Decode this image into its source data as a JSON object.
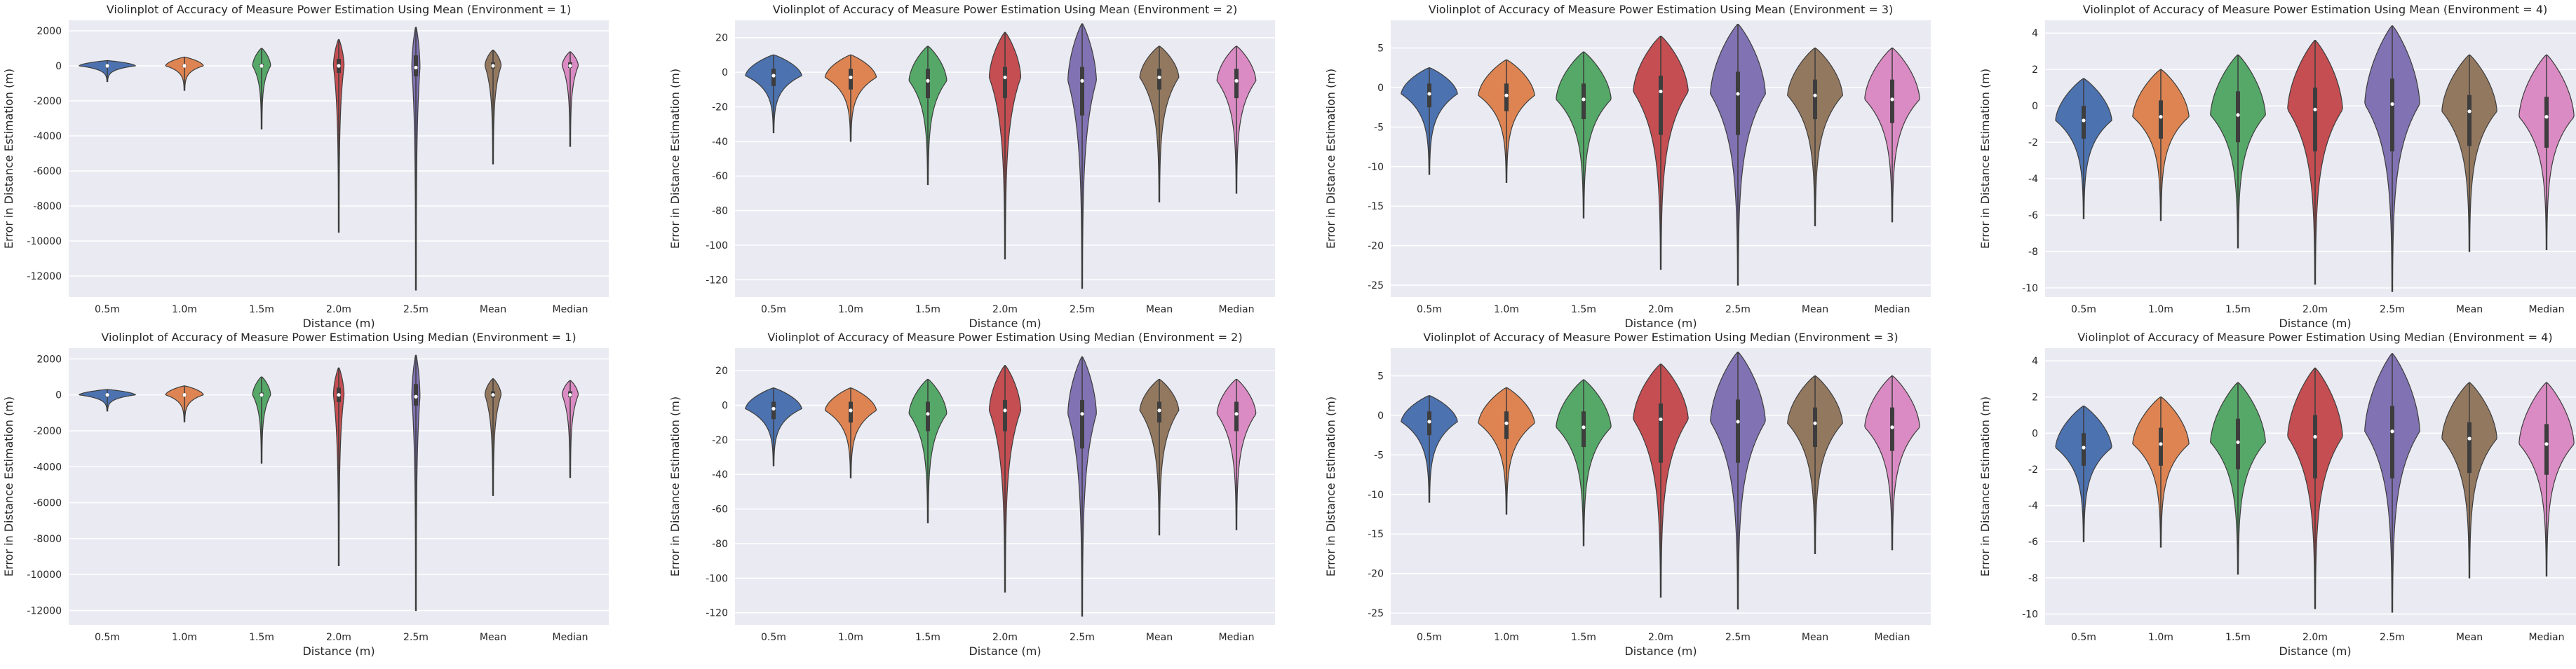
{
  "figure": {
    "palette": [
      "#4c72b0",
      "#dd8452",
      "#55a868",
      "#c44e52",
      "#8172b3",
      "#937860",
      "#da8bc3"
    ],
    "axes_background": "#eaeaf2",
    "grid_color": "#ffffff"
  },
  "chart_data": [
    {
      "type": "violin",
      "title": "Violinplot of Accuracy of Measure Power Estimation Using Mean (Environment = 1)",
      "xlabel": "Distance (m)",
      "ylabel": "Error in Distance Estimation (m)",
      "categories": [
        "0.5m",
        "1.0m",
        "1.5m",
        "2.0m",
        "2.5m",
        "Mean",
        "Median"
      ],
      "yticks": [
        2000,
        0,
        -2000,
        -4000,
        -6000,
        -8000,
        -10000,
        -12000
      ],
      "ylim": [
        -13200,
        2600
      ],
      "grid": true,
      "violins": [
        {
          "min": -900,
          "max": 300,
          "q1": -30,
          "median": 0,
          "q3": 40,
          "width": 0.9
        },
        {
          "min": -1400,
          "max": 500,
          "q1": -60,
          "median": 0,
          "q3": 60,
          "width": 0.6
        },
        {
          "min": -3600,
          "max": 1000,
          "q1": -80,
          "median": 0,
          "q3": 120,
          "width": 0.28
        },
        {
          "min": -9500,
          "max": 1500,
          "q1": -400,
          "median": 0,
          "q3": 400,
          "width": 0.16
        },
        {
          "min": -12800,
          "max": 2200,
          "q1": -600,
          "median": -100,
          "q3": 600,
          "width": 0.12
        },
        {
          "min": -5600,
          "max": 900,
          "q1": -150,
          "median": 0,
          "q3": 200,
          "width": 0.25
        },
        {
          "min": -4600,
          "max": 800,
          "q1": -120,
          "median": 0,
          "q3": 200,
          "width": 0.25
        }
      ]
    },
    {
      "type": "violin",
      "title": "Violinplot of Accuracy of Measure Power Estimation Using Mean (Environment = 2)",
      "xlabel": "Distance (m)",
      "ylabel": "Error in Distance Estimation (m)",
      "categories": [
        "0.5m",
        "1.0m",
        "1.5m",
        "2.0m",
        "2.5m",
        "Mean",
        "Median"
      ],
      "yticks": [
        20,
        0,
        -20,
        -40,
        -60,
        -80,
        -100,
        -120
      ],
      "ylim": [
        -130,
        30
      ],
      "grid": true,
      "violins": [
        {
          "min": -35,
          "max": 10,
          "q1": -8,
          "median": -2,
          "q3": 2,
          "width": 0.9
        },
        {
          "min": -40,
          "max": 10,
          "q1": -10,
          "median": -3,
          "q3": 2,
          "width": 0.82
        },
        {
          "min": -65,
          "max": 15,
          "q1": -15,
          "median": -5,
          "q3": 2,
          "width": 0.6
        },
        {
          "min": -108,
          "max": 23,
          "q1": -15,
          "median": -3,
          "q3": 3,
          "width": 0.5
        },
        {
          "min": -125,
          "max": 28,
          "q1": -25,
          "median": -5,
          "q3": 3,
          "width": 0.45
        },
        {
          "min": -75,
          "max": 15,
          "q1": -10,
          "median": -3,
          "q3": 2,
          "width": 0.62
        },
        {
          "min": -70,
          "max": 15,
          "q1": -15,
          "median": -5,
          "q3": 2,
          "width": 0.62
        }
      ]
    },
    {
      "type": "violin",
      "title": "Violinplot of Accuracy of Measure Power Estimation Using Mean (Environment = 3)",
      "xlabel": "Distance (m)",
      "ylabel": "Error in Distance Estimation (m)",
      "categories": [
        "0.5m",
        "1.0m",
        "1.5m",
        "2.0m",
        "2.5m",
        "Mean",
        "Median"
      ],
      "yticks": [
        5,
        0,
        -5,
        -10,
        -15,
        -20,
        -25
      ],
      "ylim": [
        -26.5,
        8.5
      ],
      "grid": true,
      "violins": [
        {
          "min": -11,
          "max": 2.5,
          "q1": -2.5,
          "median": -0.8,
          "q3": 0.5,
          "width": 0.9
        },
        {
          "min": -12,
          "max": 3.5,
          "q1": -3,
          "median": -1,
          "q3": 0.5,
          "width": 0.9
        },
        {
          "min": -16.5,
          "max": 4.5,
          "q1": -4,
          "median": -1.5,
          "q3": 0.5,
          "width": 0.88
        },
        {
          "min": -23,
          "max": 6.5,
          "q1": -6,
          "median": -0.5,
          "q3": 1.5,
          "width": 0.88
        },
        {
          "min": -25,
          "max": 8,
          "q1": -6,
          "median": -0.8,
          "q3": 2,
          "width": 0.88
        },
        {
          "min": -17.5,
          "max": 5,
          "q1": -4,
          "median": -1,
          "q3": 1,
          "width": 0.88
        },
        {
          "min": -17,
          "max": 5,
          "q1": -4.5,
          "median": -1.5,
          "q3": 1,
          "width": 0.88
        }
      ]
    },
    {
      "type": "violin",
      "title": "Violinplot of Accuracy of Measure Power Estimation Using Mean (Environment = 4)",
      "xlabel": "Distance (m)",
      "ylabel": "Error in Distance Estimation (m)",
      "categories": [
        "0.5m",
        "1.0m",
        "1.5m",
        "2.0m",
        "2.5m",
        "Mean",
        "Median"
      ],
      "yticks": [
        4,
        2,
        0,
        -2,
        -4,
        -6,
        -8,
        -10
      ],
      "ylim": [
        -10.5,
        4.7
      ],
      "grid": true,
      "violins": [
        {
          "min": -6.2,
          "max": 1.5,
          "q1": -1.8,
          "median": -0.8,
          "q3": 0,
          "width": 0.9
        },
        {
          "min": -6.3,
          "max": 2,
          "q1": -1.8,
          "median": -0.6,
          "q3": 0.3,
          "width": 0.9
        },
        {
          "min": -7.8,
          "max": 2.8,
          "q1": -2,
          "median": -0.5,
          "q3": 0.8,
          "width": 0.88
        },
        {
          "min": -9.8,
          "max": 3.6,
          "q1": -2.5,
          "median": -0.2,
          "q3": 1,
          "width": 0.88
        },
        {
          "min": -10.2,
          "max": 4.4,
          "q1": -2.5,
          "median": 0.1,
          "q3": 1.5,
          "width": 0.88
        },
        {
          "min": -8,
          "max": 2.8,
          "q1": -2.2,
          "median": -0.3,
          "q3": 0.6,
          "width": 0.88
        },
        {
          "min": -7.9,
          "max": 2.8,
          "q1": -2.3,
          "median": -0.6,
          "q3": 0.5,
          "width": 0.88
        }
      ]
    },
    {
      "type": "violin",
      "title": "Violinplot of Accuracy of Measure Power Estimation Using Median (Environment = 1)",
      "xlabel": "Distance (m)",
      "ylabel": "Error in Distance Estimation (m)",
      "categories": [
        "0.5m",
        "1.0m",
        "1.5m",
        "2.0m",
        "2.5m",
        "Mean",
        "Median"
      ],
      "yticks": [
        2000,
        0,
        -2000,
        -4000,
        -6000,
        -8000,
        -10000,
        -12000
      ],
      "ylim": [
        -12800,
        2600
      ],
      "grid": true,
      "violins": [
        {
          "min": -900,
          "max": 300,
          "q1": -30,
          "median": 0,
          "q3": 40,
          "width": 0.9
        },
        {
          "min": -1500,
          "max": 500,
          "q1": -60,
          "median": 0,
          "q3": 60,
          "width": 0.6
        },
        {
          "min": -3800,
          "max": 1000,
          "q1": -80,
          "median": 0,
          "q3": 120,
          "width": 0.28
        },
        {
          "min": -9500,
          "max": 1500,
          "q1": -400,
          "median": 0,
          "q3": 400,
          "width": 0.16
        },
        {
          "min": -12000,
          "max": 2200,
          "q1": -600,
          "median": -100,
          "q3": 600,
          "width": 0.12
        },
        {
          "min": -5600,
          "max": 900,
          "q1": -150,
          "median": 0,
          "q3": 200,
          "width": 0.25
        },
        {
          "min": -4600,
          "max": 800,
          "q1": -120,
          "median": 0,
          "q3": 200,
          "width": 0.25
        }
      ]
    },
    {
      "type": "violin",
      "title": "Violinplot of Accuracy of Measure Power Estimation Using Median (Environment = 2)",
      "xlabel": "Distance (m)",
      "ylabel": "Error in Distance Estimation (m)",
      "categories": [
        "0.5m",
        "1.0m",
        "1.5m",
        "2.0m",
        "2.5m",
        "Mean",
        "Median"
      ],
      "yticks": [
        20,
        0,
        -20,
        -40,
        -60,
        -80,
        -100,
        -120
      ],
      "ylim": [
        -127,
        33
      ],
      "grid": true,
      "violins": [
        {
          "min": -35,
          "max": 10,
          "q1": -8,
          "median": -2,
          "q3": 2,
          "width": 0.9
        },
        {
          "min": -42,
          "max": 10,
          "q1": -10,
          "median": -3,
          "q3": 2,
          "width": 0.82
        },
        {
          "min": -68,
          "max": 15,
          "q1": -15,
          "median": -5,
          "q3": 2,
          "width": 0.6
        },
        {
          "min": -108,
          "max": 23,
          "q1": -15,
          "median": -3,
          "q3": 3,
          "width": 0.5
        },
        {
          "min": -122,
          "max": 28,
          "q1": -25,
          "median": -5,
          "q3": 3,
          "width": 0.45
        },
        {
          "min": -75,
          "max": 15,
          "q1": -10,
          "median": -3,
          "q3": 2,
          "width": 0.62
        },
        {
          "min": -72,
          "max": 15,
          "q1": -15,
          "median": -5,
          "q3": 2,
          "width": 0.62
        }
      ]
    },
    {
      "type": "violin",
      "title": "Violinplot of Accuracy of Measure Power Estimation Using Median (Environment = 3)",
      "xlabel": "Distance (m)",
      "ylabel": "Error in Distance Estimation (m)",
      "categories": [
        "0.5m",
        "1.0m",
        "1.5m",
        "2.0m",
        "2.5m",
        "Mean",
        "Median"
      ],
      "yticks": [
        5,
        0,
        -5,
        -10,
        -15,
        -20,
        -25
      ],
      "ylim": [
        -26.5,
        8.5
      ],
      "grid": true,
      "violins": [
        {
          "min": -11,
          "max": 2.5,
          "q1": -2.5,
          "median": -0.8,
          "q3": 0.5,
          "width": 0.9
        },
        {
          "min": -12.5,
          "max": 3.5,
          "q1": -3,
          "median": -1,
          "q3": 0.5,
          "width": 0.9
        },
        {
          "min": -16.5,
          "max": 4.5,
          "q1": -4,
          "median": -1.5,
          "q3": 0.5,
          "width": 0.88
        },
        {
          "min": -23,
          "max": 6.5,
          "q1": -6,
          "median": -0.5,
          "q3": 1.5,
          "width": 0.88
        },
        {
          "min": -24.5,
          "max": 8,
          "q1": -6,
          "median": -0.8,
          "q3": 2,
          "width": 0.88
        },
        {
          "min": -17.5,
          "max": 5,
          "q1": -4,
          "median": -1,
          "q3": 1,
          "width": 0.88
        },
        {
          "min": -17,
          "max": 5,
          "q1": -4.5,
          "median": -1.5,
          "q3": 1,
          "width": 0.88
        }
      ]
    },
    {
      "type": "violin",
      "title": "Violinplot of Accuracy of Measure Power Estimation Using Median (Environment = 4)",
      "xlabel": "Distance (m)",
      "ylabel": "Error in Distance Estimation (m)",
      "categories": [
        "0.5m",
        "1.0m",
        "1.5m",
        "2.0m",
        "2.5m",
        "Mean",
        "Median"
      ],
      "yticks": [
        4,
        2,
        0,
        -2,
        -4,
        -6,
        -8,
        -10
      ],
      "ylim": [
        -10.6,
        4.7
      ],
      "grid": true,
      "violins": [
        {
          "min": -6,
          "max": 1.5,
          "q1": -1.8,
          "median": -0.8,
          "q3": 0,
          "width": 0.9
        },
        {
          "min": -6.3,
          "max": 2,
          "q1": -1.8,
          "median": -0.6,
          "q3": 0.3,
          "width": 0.9
        },
        {
          "min": -7.8,
          "max": 2.8,
          "q1": -2,
          "median": -0.5,
          "q3": 0.8,
          "width": 0.88
        },
        {
          "min": -9.7,
          "max": 3.6,
          "q1": -2.5,
          "median": -0.2,
          "q3": 1,
          "width": 0.88
        },
        {
          "min": -9.9,
          "max": 4.4,
          "q1": -2.5,
          "median": 0.1,
          "q3": 1.5,
          "width": 0.88
        },
        {
          "min": -8,
          "max": 2.8,
          "q1": -2.2,
          "median": -0.3,
          "q3": 0.6,
          "width": 0.88
        },
        {
          "min": -7.9,
          "max": 2.8,
          "q1": -2.3,
          "median": -0.6,
          "q3": 0.5,
          "width": 0.88
        }
      ]
    }
  ]
}
